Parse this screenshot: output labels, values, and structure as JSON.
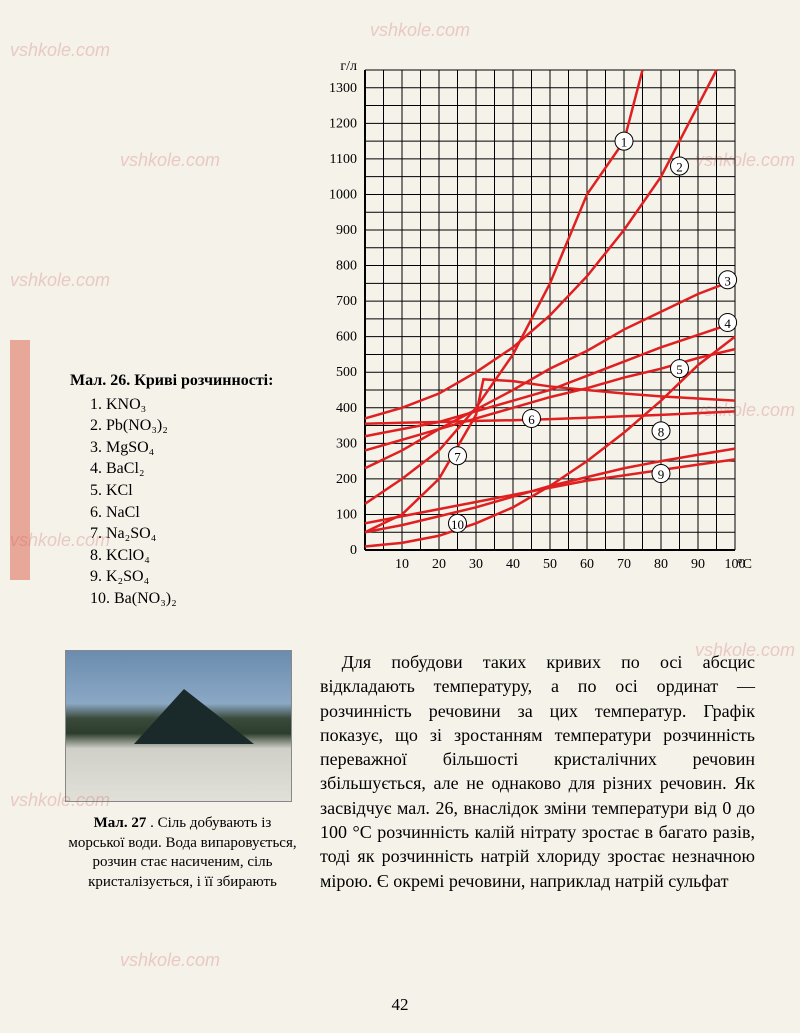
{
  "watermarks": [
    "vshkole.com",
    "vshkole.com",
    "vshkole.com",
    "vshkole.com",
    "vshkole.com",
    "vshkole.com",
    "vshkole.com",
    "vshkole.com",
    "vshkole.com",
    "vshkole.com"
  ],
  "legend": {
    "title_prefix": "Мал. 26",
    "title_rest": ". Криві розчинності:",
    "items": [
      {
        "n": "1.",
        "txt": "KNO₃"
      },
      {
        "n": "2.",
        "txt": "Pb(NO₃)₂"
      },
      {
        "n": "3.",
        "txt": "MgSO₄"
      },
      {
        "n": "4.",
        "txt": "BaCl₂"
      },
      {
        "n": "5.",
        "txt": "KCl"
      },
      {
        "n": "6.",
        "txt": "NaCl"
      },
      {
        "n": "7.",
        "txt": "Na₂SO₄"
      },
      {
        "n": "8.",
        "txt": "KClO₄"
      },
      {
        "n": "9.",
        "txt": "K₂SO₄"
      },
      {
        "n": "10.",
        "txt": "Ba(NO₃)₂"
      }
    ]
  },
  "chart": {
    "type": "line",
    "ylabel": "г/л",
    "xlabel_suffix": "°C",
    "xlim": [
      0,
      100
    ],
    "ylim": [
      0,
      1350
    ],
    "xtick_step": 10,
    "ytick_step": 100,
    "xticks": [
      "10",
      "20",
      "30",
      "40",
      "50",
      "60",
      "70",
      "80",
      "90",
      "100"
    ],
    "yticks": [
      "0",
      "100",
      "200",
      "300",
      "400",
      "500",
      "600",
      "700",
      "800",
      "900",
      "1000",
      "1100",
      "1200",
      "1300"
    ],
    "background_color": "#f5f2ea",
    "grid_color": "#000000",
    "curve_color": "#e02020",
    "curve_width": 2.5,
    "series": [
      {
        "id": 1,
        "label_pos": [
          70,
          1150
        ],
        "pts": [
          [
            0,
            130
          ],
          [
            10,
            200
          ],
          [
            20,
            280
          ],
          [
            30,
            400
          ],
          [
            40,
            550
          ],
          [
            50,
            750
          ],
          [
            60,
            1000
          ],
          [
            70,
            1150
          ],
          [
            75,
            1350
          ]
        ]
      },
      {
        "id": 2,
        "label_pos": [
          85,
          1080
        ],
        "pts": [
          [
            0,
            370
          ],
          [
            10,
            400
          ],
          [
            20,
            440
          ],
          [
            30,
            500
          ],
          [
            40,
            570
          ],
          [
            50,
            660
          ],
          [
            60,
            770
          ],
          [
            70,
            900
          ],
          [
            80,
            1050
          ],
          [
            90,
            1250
          ],
          [
            95,
            1350
          ]
        ]
      },
      {
        "id": 3,
        "label_pos": [
          98,
          760
        ],
        "pts": [
          [
            0,
            230
          ],
          [
            10,
            280
          ],
          [
            20,
            340
          ],
          [
            30,
            395
          ],
          [
            40,
            450
          ],
          [
            50,
            510
          ],
          [
            60,
            560
          ],
          [
            70,
            620
          ],
          [
            80,
            670
          ],
          [
            90,
            720
          ],
          [
            100,
            760
          ]
        ]
      },
      {
        "id": 4,
        "label_pos": [
          98,
          640
        ],
        "pts": [
          [
            0,
            320
          ],
          [
            10,
            340
          ],
          [
            20,
            360
          ],
          [
            30,
            390
          ],
          [
            40,
            420
          ],
          [
            50,
            450
          ],
          [
            60,
            490
          ],
          [
            70,
            530
          ],
          [
            80,
            570
          ],
          [
            90,
            605
          ],
          [
            100,
            640
          ]
        ]
      },
      {
        "id": 5,
        "label_pos": [
          85,
          510
        ],
        "pts": [
          [
            0,
            280
          ],
          [
            10,
            310
          ],
          [
            20,
            340
          ],
          [
            30,
            370
          ],
          [
            40,
            400
          ],
          [
            50,
            430
          ],
          [
            60,
            455
          ],
          [
            70,
            485
          ],
          [
            80,
            510
          ],
          [
            90,
            540
          ],
          [
            100,
            565
          ]
        ]
      },
      {
        "id": 6,
        "label_pos": [
          45,
          370
        ],
        "pts": [
          [
            0,
            355
          ],
          [
            10,
            358
          ],
          [
            20,
            360
          ],
          [
            30,
            363
          ],
          [
            40,
            365
          ],
          [
            50,
            368
          ],
          [
            60,
            372
          ],
          [
            70,
            376
          ],
          [
            80,
            380
          ],
          [
            90,
            385
          ],
          [
            100,
            390
          ]
        ]
      },
      {
        "id": 7,
        "label_pos": [
          25,
          265
        ],
        "pts": [
          [
            0,
            50
          ],
          [
            10,
            100
          ],
          [
            20,
            200
          ],
          [
            30,
            380
          ],
          [
            32,
            480
          ],
          [
            40,
            475
          ],
          [
            50,
            460
          ],
          [
            60,
            450
          ],
          [
            70,
            440
          ],
          [
            80,
            432
          ],
          [
            90,
            426
          ],
          [
            100,
            420
          ]
        ]
      },
      {
        "id": 8,
        "label_pos": [
          80,
          335
        ],
        "pts": [
          [
            0,
            10
          ],
          [
            10,
            20
          ],
          [
            20,
            40
          ],
          [
            30,
            75
          ],
          [
            40,
            120
          ],
          [
            50,
            180
          ],
          [
            60,
            250
          ],
          [
            70,
            330
          ],
          [
            80,
            420
          ],
          [
            90,
            520
          ],
          [
            100,
            600
          ]
        ]
      },
      {
        "id": 9,
        "label_pos": [
          80,
          215
        ],
        "pts": [
          [
            0,
            75
          ],
          [
            10,
            95
          ],
          [
            20,
            115
          ],
          [
            30,
            135
          ],
          [
            40,
            155
          ],
          [
            50,
            175
          ],
          [
            60,
            195
          ],
          [
            70,
            210
          ],
          [
            80,
            225
          ],
          [
            90,
            240
          ],
          [
            100,
            255
          ]
        ]
      },
      {
        "id": 10,
        "label_pos": [
          25,
          75
        ],
        "pts": [
          [
            0,
            50
          ],
          [
            10,
            70
          ],
          [
            20,
            95
          ],
          [
            30,
            120
          ],
          [
            40,
            150
          ],
          [
            50,
            180
          ],
          [
            60,
            205
          ],
          [
            70,
            230
          ],
          [
            80,
            250
          ],
          [
            90,
            268
          ],
          [
            100,
            285
          ]
        ]
      }
    ]
  },
  "photo_caption": {
    "title": "Мал. 27",
    "rest": " . Сіль добувають із морської води. Вода випаровується, розчин стає насиченим, сіль кристалізується, і її збирають"
  },
  "body": "Для побудови таких кривих по осі абсцис відкладають температуру, а по осі ординат — розчинність речовини за цих температур. Графік показує, що зі зростанням температури розчинність переважної більшості кристалічних речовин збільшується, але не однаково для різних речовин. Як засвідчує мал. 26, внаслідок зміни температури від 0 до 100 °C розчинність калій нітрату зростає в багато разів, тоді як розчинність натрій хлориду зростає незначною мірою. Є окремі речовини, наприклад натрій сульфат",
  "page_number": "42"
}
